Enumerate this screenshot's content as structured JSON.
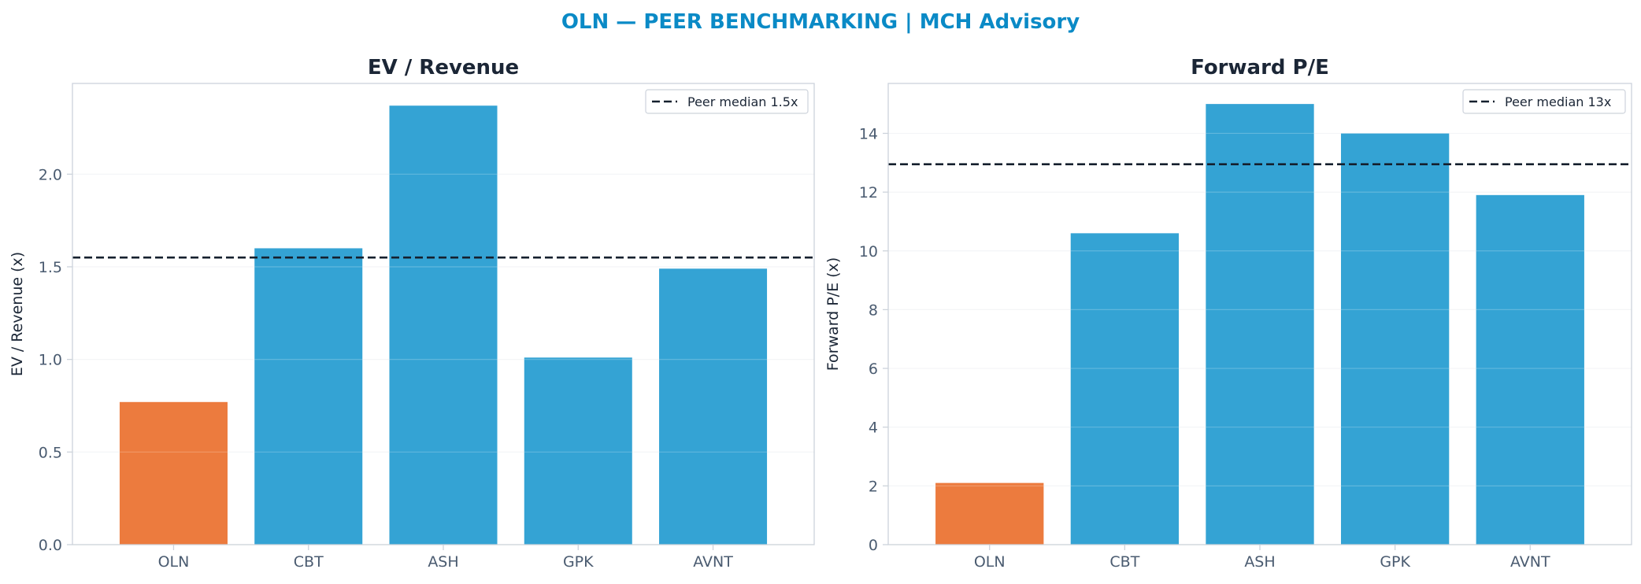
{
  "figure": {
    "suptitle": "OLN — PEER BENCHMARKING | MCH Advisory"
  },
  "colors": {
    "highlight": "#EC7B3E",
    "peer": "#34A3D4",
    "title": "#0A8AC6",
    "text": "#1B2636",
    "tick": "#4A5B70",
    "spine": "#CDD3DB",
    "grid": "#F1F3F5",
    "median": "#15202E"
  },
  "chart_data": [
    {
      "type": "bar",
      "title": "EV / Revenue",
      "ylabel": "EV / Revenue (x)",
      "categories": [
        "OLN",
        "CBT",
        "ASH",
        "GPK",
        "AVNT"
      ],
      "values": [
        0.77,
        1.6,
        2.37,
        1.01,
        1.49
      ],
      "highlight_index": 0,
      "ylim": [
        0,
        2.49
      ],
      "yticks": [
        0.0,
        0.5,
        1.0,
        1.5,
        2.0
      ],
      "ytick_labels": [
        "0.0",
        "0.5",
        "1.0",
        "1.5",
        "2.0"
      ],
      "reference_line": {
        "value": 1.55,
        "label": "Peer median 1.5x",
        "style": "dashed"
      },
      "grid": true,
      "legend": "upper-right"
    },
    {
      "type": "bar",
      "title": "Forward P/E",
      "ylabel": "Forward P/E (x)",
      "categories": [
        "OLN",
        "CBT",
        "ASH",
        "GPK",
        "AVNT"
      ],
      "values": [
        2.1,
        10.6,
        15.0,
        14.0,
        11.9
      ],
      "highlight_index": 0,
      "ylim": [
        0,
        15.7
      ],
      "yticks": [
        0,
        2,
        4,
        6,
        8,
        10,
        12,
        14
      ],
      "ytick_labels": [
        "0",
        "2",
        "4",
        "6",
        "8",
        "10",
        "12",
        "14"
      ],
      "reference_line": {
        "value": 12.95,
        "label": "Peer median 13x",
        "style": "dashed"
      },
      "grid": true,
      "legend": "upper-right"
    }
  ]
}
